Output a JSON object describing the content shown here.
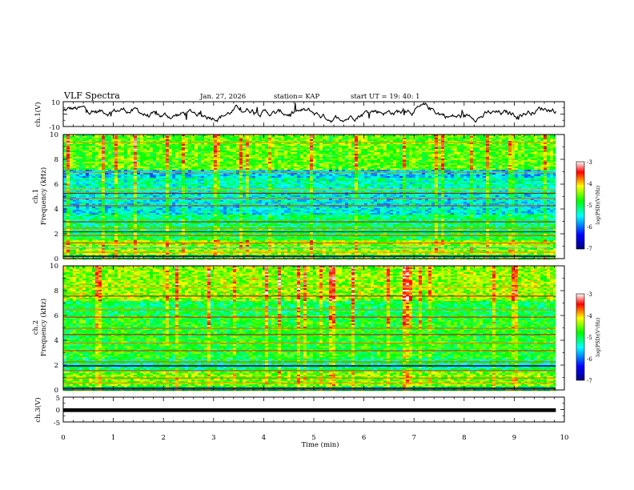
{
  "header": {
    "title": "VLF Spectra",
    "date": "Jan. 27, 2026",
    "station": "station= KAP",
    "start_ut": "start  UT =   19: 40: 1"
  },
  "chart_data": [
    {
      "type": "line",
      "name": "ch1-voltage",
      "ylabel": "ch.1(V)",
      "ylim": [
        -10,
        10
      ],
      "yticks": [
        "10",
        "-10"
      ],
      "xlim": [
        0,
        10
      ],
      "series_description": "noisy time series fluctuating roughly between -3 and 5 V"
    },
    {
      "type": "heatmap",
      "name": "ch1-spectrogram",
      "ylabel": "ch.1\nFrequency  (kHz)",
      "ylabel_line1": "ch.1",
      "ylabel_line2": "Frequency  (kHz)",
      "ylim": [
        0,
        10
      ],
      "yticks": [
        "0",
        "2",
        "4",
        "6",
        "8",
        "10"
      ],
      "xlim": [
        0,
        10
      ],
      "colorbar": {
        "label": "log(PSD)(V²/Hz)",
        "range": [
          -7,
          -3
        ],
        "ticks": [
          "-3",
          "-4",
          "-5",
          "-6",
          "-7"
        ],
        "colors": [
          "#00007f",
          "#0000ff",
          "#00ffff",
          "#00ff00",
          "#ffff00",
          "#ff0000",
          "#ffffff"
        ]
      },
      "zone_levels_log_psd": [
        {
          "from_khz": 0,
          "to_khz": 0.4,
          "level": -4.6
        },
        {
          "from_khz": 0.4,
          "to_khz": 1.5,
          "level": -4.4
        },
        {
          "from_khz": 1.5,
          "to_khz": 2.6,
          "level": -4.9
        },
        {
          "from_khz": 2.6,
          "to_khz": 3.6,
          "level": -5.1
        },
        {
          "from_khz": 3.6,
          "to_khz": 5.3,
          "level": -5.5
        },
        {
          "from_khz": 5.3,
          "to_khz": 6.6,
          "level": -5.3
        },
        {
          "from_khz": 6.6,
          "to_khz": 7.2,
          "level": -5.6
        },
        {
          "from_khz": 7.2,
          "to_khz": 10,
          "level": -4.6
        }
      ]
    },
    {
      "type": "heatmap",
      "name": "ch2-spectrogram",
      "ylabel": "ch.2\nFrequency  (kHz)",
      "ylabel_line1": "ch.2",
      "ylabel_line2": "Frequency  (kHz)",
      "ylim": [
        0,
        10
      ],
      "yticks": [
        "0",
        "2",
        "4",
        "6",
        "8",
        "10"
      ],
      "xlim": [
        0,
        10
      ],
      "colorbar": {
        "label": "log(PSD)(V²/Hz)",
        "range": [
          -7,
          -3
        ],
        "ticks": [
          "-3",
          "-4",
          "-5",
          "-6",
          "-7"
        ],
        "colors": [
          "#00007f",
          "#0000ff",
          "#00ffff",
          "#00ff00",
          "#ffff00",
          "#ff0000",
          "#ffffff"
        ]
      },
      "zone_levels_log_psd": [
        {
          "from_khz": 0,
          "to_khz": 0.4,
          "level": -4.7
        },
        {
          "from_khz": 0.4,
          "to_khz": 1.5,
          "level": -4.5
        },
        {
          "from_khz": 1.5,
          "to_khz": 2.6,
          "level": -5.1
        },
        {
          "from_khz": 2.6,
          "to_khz": 6.0,
          "level": -4.8
        },
        {
          "from_khz": 6.0,
          "to_khz": 7.2,
          "level": -5.0
        },
        {
          "from_khz": 7.2,
          "to_khz": 10,
          "level": -4.4
        }
      ]
    },
    {
      "type": "line",
      "name": "ch3-voltage",
      "ylabel": "ch.3(V)",
      "ylim": [
        -5,
        5
      ],
      "yticks": [
        "5",
        "0",
        "-5"
      ],
      "xlim": [
        0,
        10
      ],
      "xlabel": "Time  (min)",
      "xticks": [
        "0",
        "1",
        "2",
        "3",
        "4",
        "5",
        "6",
        "7",
        "8",
        "9",
        "10"
      ],
      "series_description": "constant thick band near -0.2 V until ~9.8 min"
    }
  ]
}
